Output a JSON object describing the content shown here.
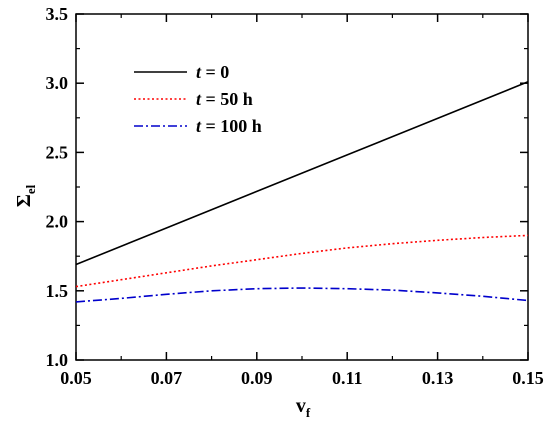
{
  "chart_data": {
    "type": "line",
    "xlabel": "v",
    "xlabel_sub": "f",
    "ylabel": "Σ",
    "ylabel_sub": "el",
    "xlim": [
      0.05,
      0.15
    ],
    "ylim": [
      1.0,
      3.5
    ],
    "xticks": [
      0.05,
      0.07,
      0.09,
      0.11,
      0.13,
      0.15
    ],
    "xtick_labels": [
      "0.05",
      "0.07",
      "0.09",
      "0.11",
      "0.13",
      "0.15"
    ],
    "yticks": [
      1.0,
      1.5,
      2.0,
      2.5,
      3.0,
      3.5
    ],
    "ytick_labels": [
      "1.0",
      "1.5",
      "2.0",
      "2.5",
      "3.0",
      "3.5"
    ],
    "grid": false,
    "legend_position": "top-left",
    "series": [
      {
        "name_var": "t",
        "name_rest": " = 0",
        "color": "#000000",
        "style": "solid",
        "x": [
          0.05,
          0.07,
          0.09,
          0.11,
          0.13,
          0.15
        ],
        "y": [
          1.69,
          1.954,
          2.218,
          2.482,
          2.746,
          3.01
        ]
      },
      {
        "name_var": "t",
        "name_rest": " = 50 h",
        "color": "#ff0000",
        "style": "dotted",
        "x": [
          0.05,
          0.06,
          0.07,
          0.08,
          0.09,
          0.1,
          0.11,
          0.12,
          0.13,
          0.14,
          0.15
        ],
        "y": [
          1.53,
          1.58,
          1.63,
          1.68,
          1.725,
          1.77,
          1.81,
          1.84,
          1.865,
          1.885,
          1.9
        ]
      },
      {
        "name_var": "t",
        "name_rest": " = 100 h",
        "color": "#0000cc",
        "style": "dashdot",
        "x": [
          0.05,
          0.06,
          0.07,
          0.08,
          0.09,
          0.1,
          0.11,
          0.12,
          0.13,
          0.14,
          0.15
        ],
        "y": [
          1.42,
          1.445,
          1.475,
          1.5,
          1.515,
          1.52,
          1.515,
          1.505,
          1.485,
          1.46,
          1.43
        ]
      }
    ]
  }
}
